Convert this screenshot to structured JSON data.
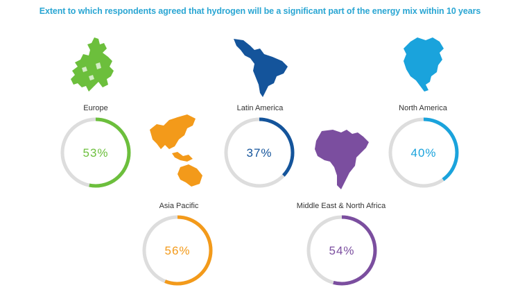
{
  "chart_data": {
    "type": "donut",
    "title": "Extent to which respondents agreed that hydrogen will be a significant part of the energy mix within 10 years",
    "unit": "%",
    "track_color": "#dddddd",
    "series": [
      {
        "name": "Europe",
        "value": 53,
        "label": "53%",
        "color": "#6cbf3c",
        "map_icon": "europe-map-icon"
      },
      {
        "name": "Latin America",
        "value": 37,
        "label": "37%",
        "color": "#14549b",
        "map_icon": "latin-america-map-icon"
      },
      {
        "name": "North America",
        "value": 40,
        "label": "40%",
        "color": "#1aa3dc",
        "map_icon": "north-america-map-icon"
      },
      {
        "name": "Asia Pacific",
        "value": 56,
        "label": "56%",
        "color": "#f39a1a",
        "map_icon": "asia-pacific-map-icon"
      },
      {
        "name": "Middle East & North Africa",
        "value": 54,
        "label": "54%",
        "color": "#7b4e9f",
        "map_icon": "middle-east-africa-map-icon"
      }
    ]
  }
}
